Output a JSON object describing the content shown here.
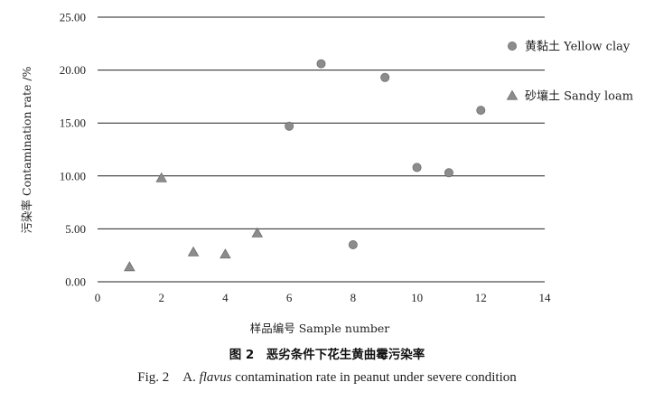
{
  "chart_data": {
    "type": "scatter",
    "title": "",
    "xlabel": "样品编号 Sample number",
    "ylabel": "污染率 Contamination rate /%",
    "xlim": [
      0,
      14
    ],
    "ylim": [
      0,
      25
    ],
    "x_ticks": [
      "0",
      "2",
      "4",
      "6",
      "8",
      "10",
      "12",
      "14"
    ],
    "y_ticks": [
      "0.00",
      "5.00",
      "10.00",
      "15.00",
      "20.00",
      "25.00"
    ],
    "grid": "horizontal",
    "legend_position": "right",
    "series": [
      {
        "name": "黄黏土 Yellow clay",
        "marker": "circle",
        "color": "#8c8c8c",
        "points": [
          {
            "x": 6,
            "y": 14.7
          },
          {
            "x": 7,
            "y": 20.6
          },
          {
            "x": 8,
            "y": 3.5
          },
          {
            "x": 9,
            "y": 19.3
          },
          {
            "x": 10,
            "y": 10.8
          },
          {
            "x": 11,
            "y": 10.3
          },
          {
            "x": 12,
            "y": 16.2
          }
        ]
      },
      {
        "name": "砂壤土 Sandy loam",
        "marker": "triangle",
        "color": "#8c8c8c",
        "points": [
          {
            "x": 1,
            "y": 1.4
          },
          {
            "x": 2,
            "y": 9.8
          },
          {
            "x": 3,
            "y": 2.8
          },
          {
            "x": 4,
            "y": 2.6
          },
          {
            "x": 5,
            "y": 4.6
          }
        ]
      }
    ]
  },
  "caption": {
    "cn": "图 2　恶劣条件下花生黄曲霉污染率",
    "en_prefix": "Fig. 2　A. ",
    "en_italic": "flavus",
    "en_suffix": " contamination rate in peanut under severe condition"
  }
}
